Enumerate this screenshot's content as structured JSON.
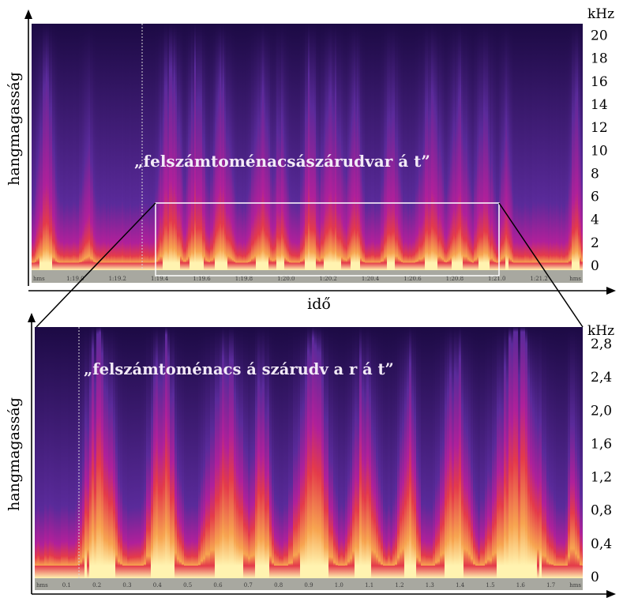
{
  "chart_data": [
    {
      "type": "heatmap",
      "title": "",
      "xlabel": "idő",
      "ylabel": "hangmagasság",
      "y_unit": "kHz",
      "y_ticks": [
        "0",
        "2",
        "4",
        "6",
        "8",
        "10",
        "12",
        "14",
        "16",
        "18",
        "20"
      ],
      "y_range": [
        0,
        21
      ],
      "time_labels": [
        "hms",
        "1:19.0",
        "1:19.2",
        "1:19.4",
        "1:19.6",
        "1:19.8",
        "1:20.0",
        "1:20.2",
        "1:20.4",
        "1:20.6",
        "1:20.8",
        "1:21.0",
        "1:21.2",
        "hms"
      ],
      "annotation": "„felszámtoménacsászárudvar á t”",
      "highlight_region": {
        "time_start": "1:19.3",
        "time_end": "1:21.0",
        "freq_kHz": [
          0,
          5.6
        ]
      },
      "colormap": [
        "#1c0a44",
        "#5a2a9a",
        "#b0209a",
        "#e43a4a",
        "#f7a550",
        "#fff3b0"
      ]
    },
    {
      "type": "heatmap",
      "title": "",
      "xlabel": "",
      "ylabel": "hangmagasság",
      "y_unit": "kHz",
      "y_ticks": [
        "0",
        "0,4",
        "0,8",
        "1,2",
        "1,6",
        "2,0",
        "2,4",
        "2,8"
      ],
      "y_range": [
        0,
        3.0
      ],
      "time_labels": [
        "hms",
        "0.1",
        "0.2",
        "0.3",
        "0.4",
        "0.5",
        "0.6",
        "0.7",
        "0.8",
        "0.9",
        "1.0",
        "1.1",
        "1.2",
        "1.3",
        "1.4",
        "1.5",
        "1.6",
        "1.7",
        "hms"
      ],
      "annotation": "„felszámtoménacs á szárudv a r  á  t”",
      "colormap": [
        "#1c0a44",
        "#5a2a9a",
        "#b0209a",
        "#e43a4a",
        "#f7a550",
        "#fff3b0"
      ]
    }
  ]
}
